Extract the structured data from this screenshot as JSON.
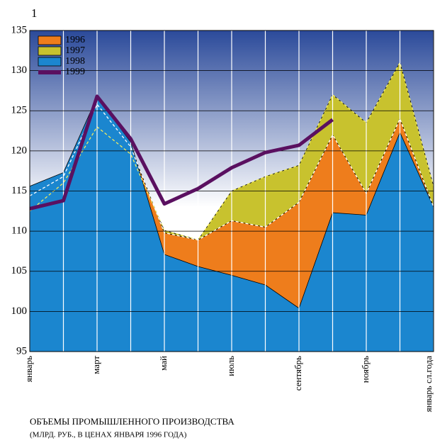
{
  "chart_data": {
    "type": "area",
    "corner_label": "1",
    "title": "ОБЪЕМЫ ПРОМЫШЛЕННОГО ПРОИЗВОДСТВА",
    "subtitle": "(МЛРД. РУБ., В ЦЕНАХ ЯНВАРЯ 1996 ГОДА)",
    "categories": [
      "январь",
      null,
      "март",
      null,
      "май",
      null,
      "июль",
      null,
      "сентябрь",
      null,
      "ноябрь",
      null,
      "январь сл.года"
    ],
    "series": [
      {
        "name": "1997",
        "color": "#c8c22e",
        "values": [
          112.5,
          116,
          123,
          119.6,
          110.1,
          108.9,
          115,
          116.8,
          118.2,
          127,
          123.5,
          131,
          115.6
        ]
      },
      {
        "name": "1996",
        "color": "#ee7d1c",
        "values": [
          114.4,
          116.8,
          125.8,
          120.5,
          109.8,
          108.9,
          111.3,
          110.5,
          113.6,
          122,
          114.7,
          124,
          113
        ]
      },
      {
        "name": "1998",
        "color": "#1b86cf",
        "values": [
          115.6,
          117.3,
          126.7,
          121.1,
          107.1,
          105.6,
          104.5,
          103.3,
          100.4,
          112.3,
          112,
          122.3,
          113
        ]
      },
      {
        "name": "1999",
        "color": "#5a1060",
        "type": "line",
        "values": [
          112.8,
          113.8,
          126.8,
          121.5,
          113.4,
          115.3,
          117.9,
          119.8,
          120.7,
          123.9,
          null,
          null,
          null
        ]
      }
    ],
    "legend_order": [
      1,
      0,
      2,
      3
    ],
    "ylim": [
      95,
      135
    ],
    "yticks": [
      95,
      100,
      105,
      110,
      115,
      120,
      125,
      130,
      135
    ],
    "grid": true
  }
}
